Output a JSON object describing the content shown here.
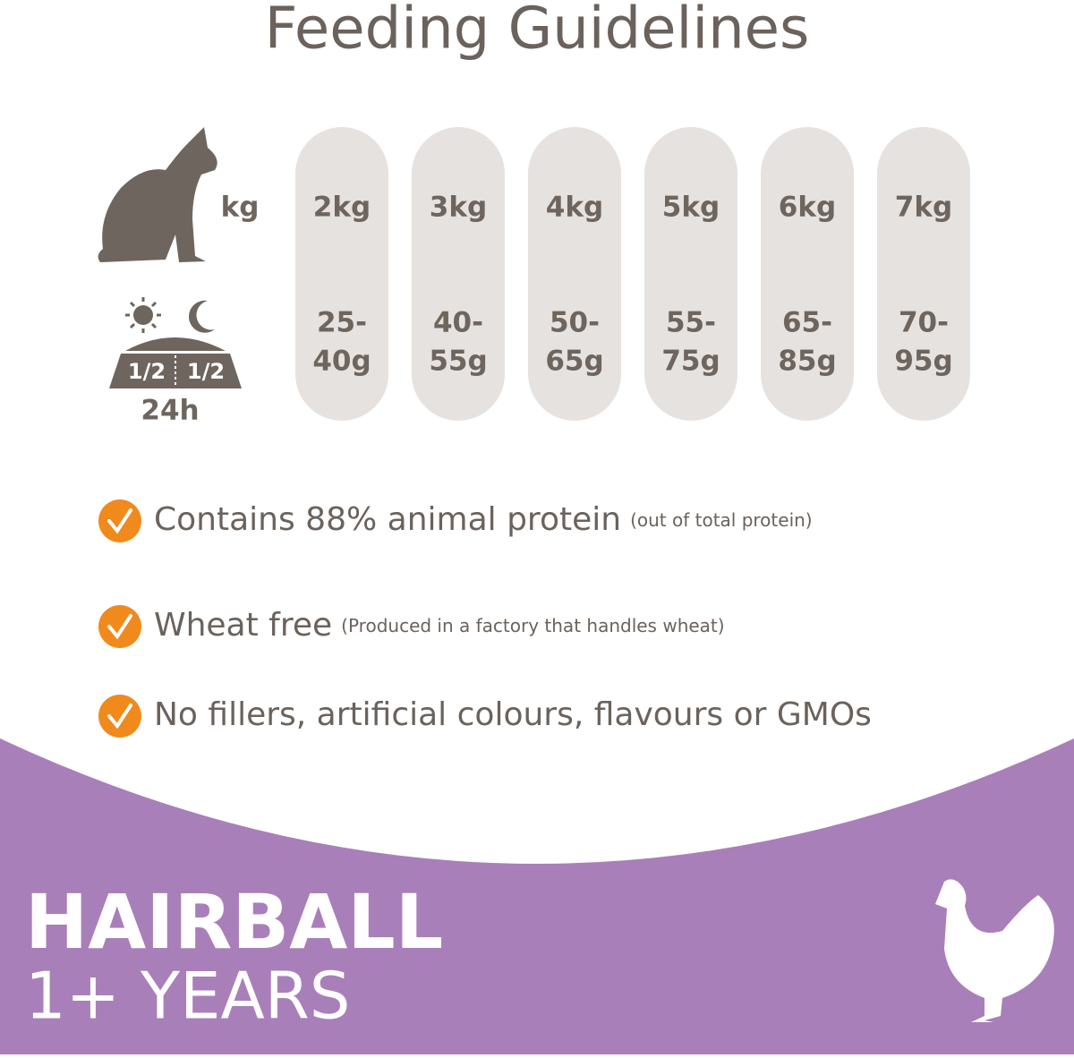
{
  "header": {
    "title": "Feeding Guidelines"
  },
  "feeding": {
    "weight_label": "kg",
    "portion_label": "24h",
    "bowl_labels": [
      "1/2",
      "1/2"
    ],
    "columns": [
      {
        "weight": "2kg",
        "amount_lines": [
          "25-",
          "40g"
        ]
      },
      {
        "weight": "3kg",
        "amount_lines": [
          "40-",
          "55g"
        ]
      },
      {
        "weight": "4kg",
        "amount_lines": [
          "50-",
          "65g"
        ]
      },
      {
        "weight": "5kg",
        "amount_lines": [
          "55-",
          "75g"
        ]
      },
      {
        "weight": "6kg",
        "amount_lines": [
          "65-",
          "85g"
        ]
      },
      {
        "weight": "7kg",
        "amount_lines": [
          "70-",
          "95g"
        ]
      }
    ]
  },
  "features": [
    {
      "text": "Contains 88% animal protein",
      "note": "(out of total protein)"
    },
    {
      "text": "Wheat free",
      "note": "(Produced in a factory that handles wheat)"
    },
    {
      "text": "No fillers, artificial colours, flavours or GMOs"
    }
  ],
  "footer": {
    "title": "HAIRBALL",
    "subtitle": "1+ YEARS"
  }
}
